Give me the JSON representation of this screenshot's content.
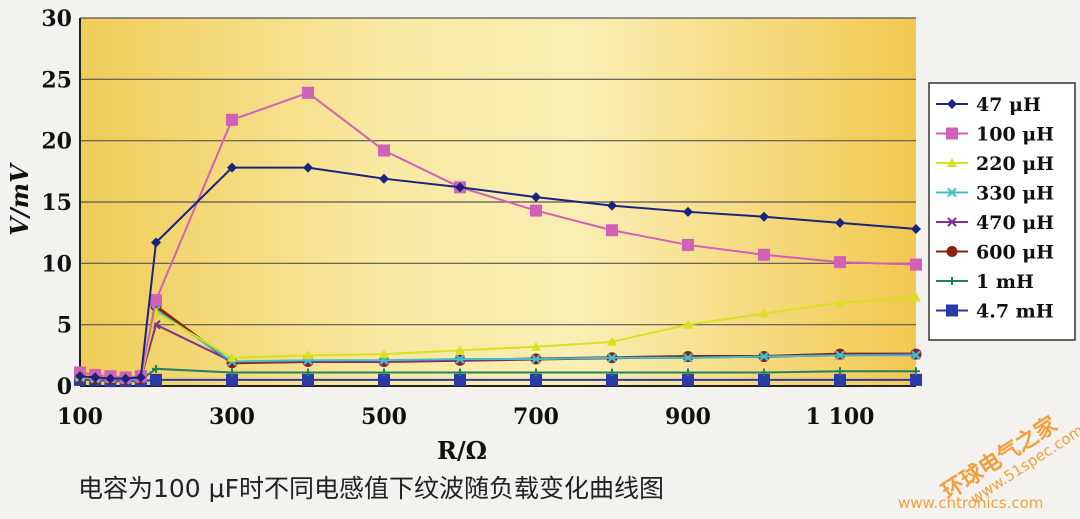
{
  "chart_data": {
    "type": "line",
    "caption": "电容为100 μF时不同电感值下纹波随负载变化曲线图",
    "xlabel": "R/Ω",
    "ylabel": "V/mV",
    "xlim": [
      100,
      1200
    ],
    "ylim": [
      0,
      30
    ],
    "x_ticks": [
      "100",
      "300",
      "500",
      "700",
      "900",
      "1 100"
    ],
    "y_ticks": [
      "0",
      "5",
      "10",
      "15",
      "20",
      "25",
      "30"
    ],
    "grid": true,
    "legend_position": "right",
    "x": [
      100,
      120,
      140,
      160,
      180,
      200,
      300,
      400,
      500,
      600,
      700,
      800,
      900,
      1000,
      1100,
      1200
    ],
    "series": [
      {
        "name": "47 μH",
        "color": "#1a237e",
        "marker": "diamond",
        "values": [
          0.8,
          0.7,
          0.6,
          0.6,
          0.7,
          11.7,
          17.8,
          17.8,
          16.9,
          16.2,
          15.4,
          14.7,
          14.2,
          13.8,
          13.3,
          12.8
        ]
      },
      {
        "name": "100 μH",
        "color": "#d060b8",
        "marker": "square",
        "values": [
          1.1,
          0.9,
          0.8,
          0.7,
          0.8,
          7.0,
          21.7,
          23.9,
          19.2,
          16.2,
          14.3,
          12.7,
          11.5,
          10.7,
          10.1,
          9.9
        ]
      },
      {
        "name": "220 μH",
        "color": "#d8e020",
        "marker": "triangle",
        "values": [
          0.8,
          0.7,
          0.6,
          0.6,
          0.7,
          6.0,
          2.3,
          2.5,
          2.6,
          2.9,
          3.2,
          3.6,
          5.0,
          5.9,
          6.8,
          7.2
        ]
      },
      {
        "name": "330 μH",
        "color": "#40c0c8",
        "marker": "x",
        "values": [
          0.7,
          0.6,
          0.6,
          0.5,
          0.6,
          6.2,
          2.0,
          2.1,
          2.1,
          2.2,
          2.2,
          2.3,
          2.3,
          2.4,
          2.5,
          2.5
        ]
      },
      {
        "name": "470 μH",
        "color": "#803090",
        "marker": "x",
        "values": [
          0.7,
          0.6,
          0.6,
          0.5,
          0.6,
          5.0,
          2.0,
          2.0,
          2.0,
          2.1,
          2.2,
          2.3,
          2.3,
          2.4,
          2.5,
          2.6
        ]
      },
      {
        "name": "600 μH",
        "color": "#8a2010",
        "marker": "circle",
        "values": [
          0.7,
          0.6,
          0.6,
          0.5,
          0.6,
          6.5,
          1.9,
          2.0,
          2.0,
          2.1,
          2.2,
          2.3,
          2.4,
          2.4,
          2.6,
          2.6
        ]
      },
      {
        "name": "1 mH",
        "color": "#208060",
        "marker": "plus",
        "values": [
          0.6,
          0.5,
          0.5,
          0.4,
          0.5,
          1.4,
          1.1,
          1.1,
          1.1,
          1.1,
          1.1,
          1.1,
          1.1,
          1.1,
          1.2,
          1.2
        ]
      },
      {
        "name": "4.7 mH",
        "color": "#2a3aa8",
        "marker": "square",
        "values": [
          0.5,
          0.5,
          0.4,
          0.4,
          0.4,
          0.5,
          0.5,
          0.5,
          0.5,
          0.5,
          0.5,
          0.5,
          0.5,
          0.5,
          0.5,
          0.5
        ]
      }
    ]
  },
  "watermark": {
    "line1": "环球电气之家",
    "line2": "www.51spec.com",
    "line3": "www.cntronics.com"
  }
}
